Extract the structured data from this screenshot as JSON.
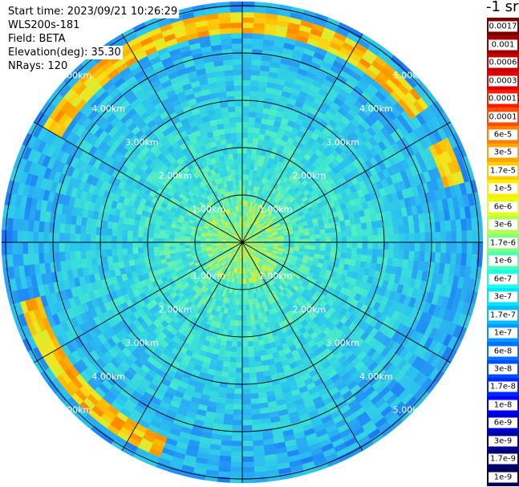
{
  "info": {
    "start_time": "Start time: 2023/09/21 10:26:29",
    "instrument": "WLS200s-181",
    "field": "Field: BETA",
    "elevation": "Elevation(deg): 35.30",
    "nrays": "NRays: 120"
  },
  "units_label": "-1 sr",
  "chart_data": {
    "type": "heatmap",
    "projection": "polar",
    "range_unit": "km",
    "max_range": 5.0,
    "range_rings": [
      1,
      2,
      3,
      4,
      5
    ],
    "ring_labels": [
      "1.00km",
      "2.00km",
      "3.00km",
      "4.00km",
      "5.00km"
    ],
    "spoke_angles_deg": [
      0,
      30,
      60,
      90,
      120,
      150,
      180,
      210,
      240,
      270,
      300,
      330
    ],
    "colorbar": [
      {
        "label": "0.0017",
        "color": "#7a0000"
      },
      {
        "label": "0.001",
        "color": "#a00000"
      },
      {
        "label": "0.0006",
        "color": "#c40000"
      },
      {
        "label": "0.0003",
        "color": "#e00000"
      },
      {
        "label": "0.00017",
        "color": "#ff1a00"
      },
      {
        "label": "0.0001",
        "color": "#ff4d00"
      },
      {
        "label": "6e-5",
        "color": "#ff8000"
      },
      {
        "label": "3e-5",
        "color": "#ffa600"
      },
      {
        "label": "1.7e-5",
        "color": "#ffcc00"
      },
      {
        "label": "1e-5",
        "color": "#ffee00"
      },
      {
        "label": "6e-6",
        "color": "#e6ff1a"
      },
      {
        "label": "3e-6",
        "color": "#b3ff4d"
      },
      {
        "label": "1.7e-6",
        "color": "#80ff80"
      },
      {
        "label": "1e-6",
        "color": "#4dffb3"
      },
      {
        "label": "6e-7",
        "color": "#1affe6"
      },
      {
        "label": "3e-7",
        "color": "#00e6ff"
      },
      {
        "label": "1.7e-7",
        "color": "#00bfff"
      },
      {
        "label": "1e-7",
        "color": "#0099ff"
      },
      {
        "label": "6e-8",
        "color": "#0073ff"
      },
      {
        "label": "3e-8",
        "color": "#004dff"
      },
      {
        "label": "1.7e-8",
        "color": "#0026ff"
      },
      {
        "label": "1e-8",
        "color": "#0000ff"
      },
      {
        "label": "6e-9",
        "color": "#0000cc"
      },
      {
        "label": "3e-9",
        "color": "#000099"
      },
      {
        "label": "1.7e-9",
        "color": "#000070"
      },
      {
        "label": "1e-9",
        "color": "#000050"
      }
    ],
    "notes": "Backscatter values mostly 3e-7 to 6e-8 across the scan; higher values (1e-6 to 6e-7) within ~1.5 km; a bright band (~1e-5 to 3e-6) near 5.3 km range on the north, northeast and southwest arcs."
  }
}
